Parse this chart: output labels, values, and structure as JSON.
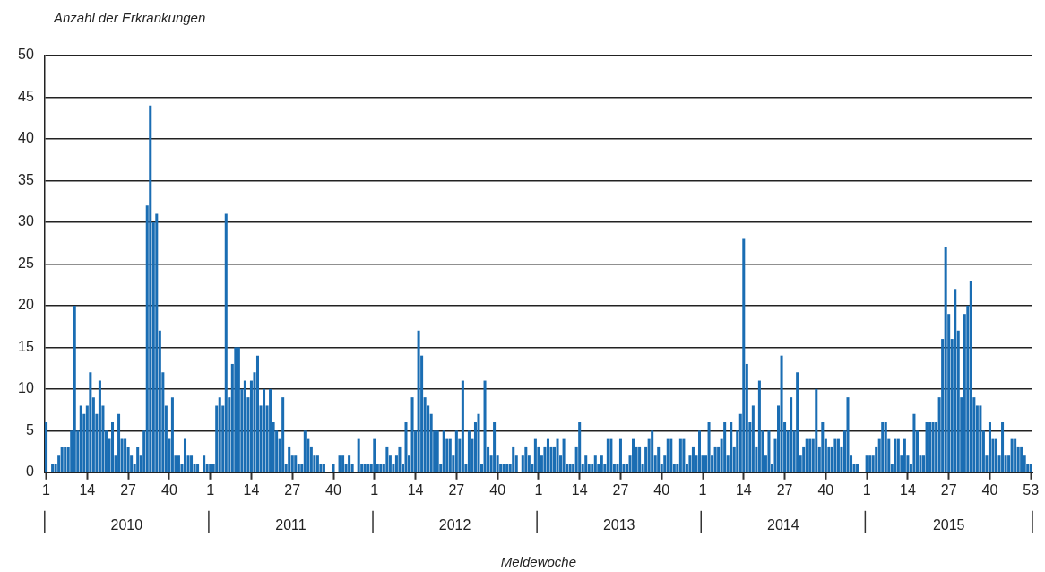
{
  "chart_data": {
    "type": "bar",
    "ylabel": "Anzahl der Erkrankungen",
    "xlabel": "Meldewoche",
    "categories": [
      "1",
      null,
      null,
      null,
      null,
      null,
      null,
      null,
      null,
      null,
      null,
      null,
      null,
      "14",
      null,
      null,
      null,
      null,
      null,
      null,
      null,
      null,
      null,
      null,
      null,
      null,
      "27",
      null,
      null,
      null,
      null,
      null,
      null,
      null,
      null,
      null,
      null,
      null,
      null,
      "40",
      null,
      null,
      null,
      null,
      null,
      null,
      null,
      null,
      null,
      null,
      null,
      null,
      "1",
      null,
      null,
      null,
      null,
      null,
      null,
      null,
      null,
      null,
      null,
      null,
      null,
      "14",
      null,
      null,
      null,
      null,
      null,
      null,
      null,
      null,
      null,
      null,
      null,
      null,
      "27",
      null,
      null,
      null,
      null,
      null,
      null,
      null,
      null,
      null,
      null,
      null,
      null,
      "40",
      null,
      null,
      null,
      null,
      null,
      null,
      null,
      null,
      null,
      null,
      null,
      null,
      "1",
      null,
      null,
      null,
      null,
      null,
      null,
      null,
      null,
      null,
      null,
      null,
      null,
      "14",
      null,
      null,
      null,
      null,
      null,
      null,
      null,
      null,
      null,
      null,
      null,
      null,
      "27",
      null,
      null,
      null,
      null,
      null,
      null,
      null,
      null,
      null,
      null,
      null,
      null,
      "40",
      null,
      null,
      null,
      null,
      null,
      null,
      null,
      null,
      null,
      null,
      null,
      null,
      "1",
      null,
      null,
      null,
      null,
      null,
      null,
      null,
      null,
      null,
      null,
      null,
      null,
      "14",
      null,
      null,
      null,
      null,
      null,
      null,
      null,
      null,
      null,
      null,
      null,
      null,
      "27",
      null,
      null,
      null,
      null,
      null,
      null,
      null,
      null,
      null,
      null,
      null,
      null,
      "40",
      null,
      null,
      null,
      null,
      null,
      null,
      null,
      null,
      null,
      null,
      null,
      null,
      "1",
      null,
      null,
      null,
      null,
      null,
      null,
      null,
      null,
      null,
      null,
      null,
      null,
      "14",
      null,
      null,
      null,
      null,
      null,
      null,
      null,
      null,
      null,
      null,
      null,
      null,
      "27",
      null,
      null,
      null,
      null,
      null,
      null,
      null,
      null,
      null,
      null,
      null,
      null,
      "40",
      null,
      null,
      null,
      null,
      null,
      null,
      null,
      null,
      null,
      null,
      null,
      null,
      "1",
      null,
      null,
      null,
      null,
      null,
      null,
      null,
      null,
      null,
      null,
      null,
      null,
      "14",
      null,
      null,
      null,
      null,
      null,
      null,
      null,
      null,
      null,
      null,
      null,
      null,
      "27",
      null,
      null,
      null,
      null,
      null,
      null,
      null,
      null,
      null,
      null,
      null,
      null,
      "40",
      null,
      null,
      null,
      null,
      null,
      null,
      null,
      null,
      null,
      null,
      null,
      null,
      "53"
    ],
    "values": [
      6,
      0,
      1,
      1,
      2,
      3,
      3,
      3,
      5,
      20,
      5,
      8,
      7,
      8,
      12,
      9,
      7,
      11,
      8,
      5,
      4,
      6,
      2,
      7,
      4,
      4,
      3,
      2,
      1,
      3,
      2,
      5,
      32,
      44,
      30,
      31,
      17,
      12,
      8,
      4,
      9,
      2,
      2,
      1,
      4,
      2,
      2,
      1,
      1,
      0,
      2,
      1,
      1,
      1,
      8,
      9,
      8,
      31,
      9,
      13,
      15,
      15,
      10,
      11,
      9,
      11,
      12,
      14,
      8,
      10,
      8,
      10,
      6,
      5,
      4,
      9,
      1,
      3,
      2,
      2,
      1,
      1,
      5,
      4,
      3,
      2,
      2,
      1,
      1,
      0,
      0,
      1,
      0,
      2,
      2,
      1,
      2,
      1,
      0,
      4,
      1,
      1,
      1,
      1,
      4,
      1,
      1,
      1,
      3,
      2,
      1,
      2,
      3,
      1,
      6,
      2,
      9,
      5,
      17,
      14,
      9,
      8,
      7,
      5,
      5,
      1,
      5,
      4,
      4,
      2,
      5,
      4,
      11,
      1,
      5,
      4,
      6,
      7,
      1,
      11,
      3,
      2,
      6,
      2,
      1,
      1,
      1,
      1,
      3,
      2,
      0,
      2,
      3,
      2,
      1,
      4,
      3,
      2,
      3,
      4,
      3,
      3,
      4,
      2,
      4,
      1,
      1,
      1,
      3,
      6,
      1,
      2,
      1,
      1,
      2,
      1,
      2,
      1,
      4,
      4,
      1,
      1,
      4,
      1,
      1,
      2,
      4,
      3,
      3,
      1,
      3,
      4,
      5,
      2,
      3,
      1,
      2,
      4,
      4,
      1,
      1,
      4,
      4,
      1,
      2,
      3,
      2,
      5,
      2,
      2,
      6,
      2,
      3,
      3,
      4,
      6,
      2,
      6,
      3,
      5,
      7,
      28,
      13,
      6,
      8,
      3,
      11,
      5,
      2,
      5,
      1,
      4,
      8,
      14,
      6,
      5,
      9,
      5,
      12,
      2,
      3,
      4,
      4,
      4,
      10,
      3,
      6,
      4,
      3,
      3,
      4,
      4,
      3,
      5,
      9,
      2,
      1,
      1,
      0,
      0,
      2,
      2,
      2,
      3,
      4,
      6,
      6,
      4,
      1,
      4,
      4,
      2,
      4,
      2,
      1,
      7,
      5,
      2,
      2,
      6,
      6,
      6,
      6,
      9,
      16,
      27,
      19,
      16,
      22,
      17,
      9,
      19,
      20,
      23,
      9,
      8,
      8,
      5,
      2,
      6,
      4,
      4,
      2,
      6,
      2,
      2,
      4,
      4,
      3,
      3,
      2,
      1,
      1
    ],
    "color": "#1a6db3",
    "ylim": [
      0,
      50
    ],
    "yticks": [
      0,
      5,
      10,
      15,
      20,
      25,
      30,
      35,
      40,
      45,
      50
    ],
    "grid": "y",
    "annotations": [
      "2010",
      "2011",
      "2012",
      "2013",
      "2014",
      "2015"
    ]
  }
}
